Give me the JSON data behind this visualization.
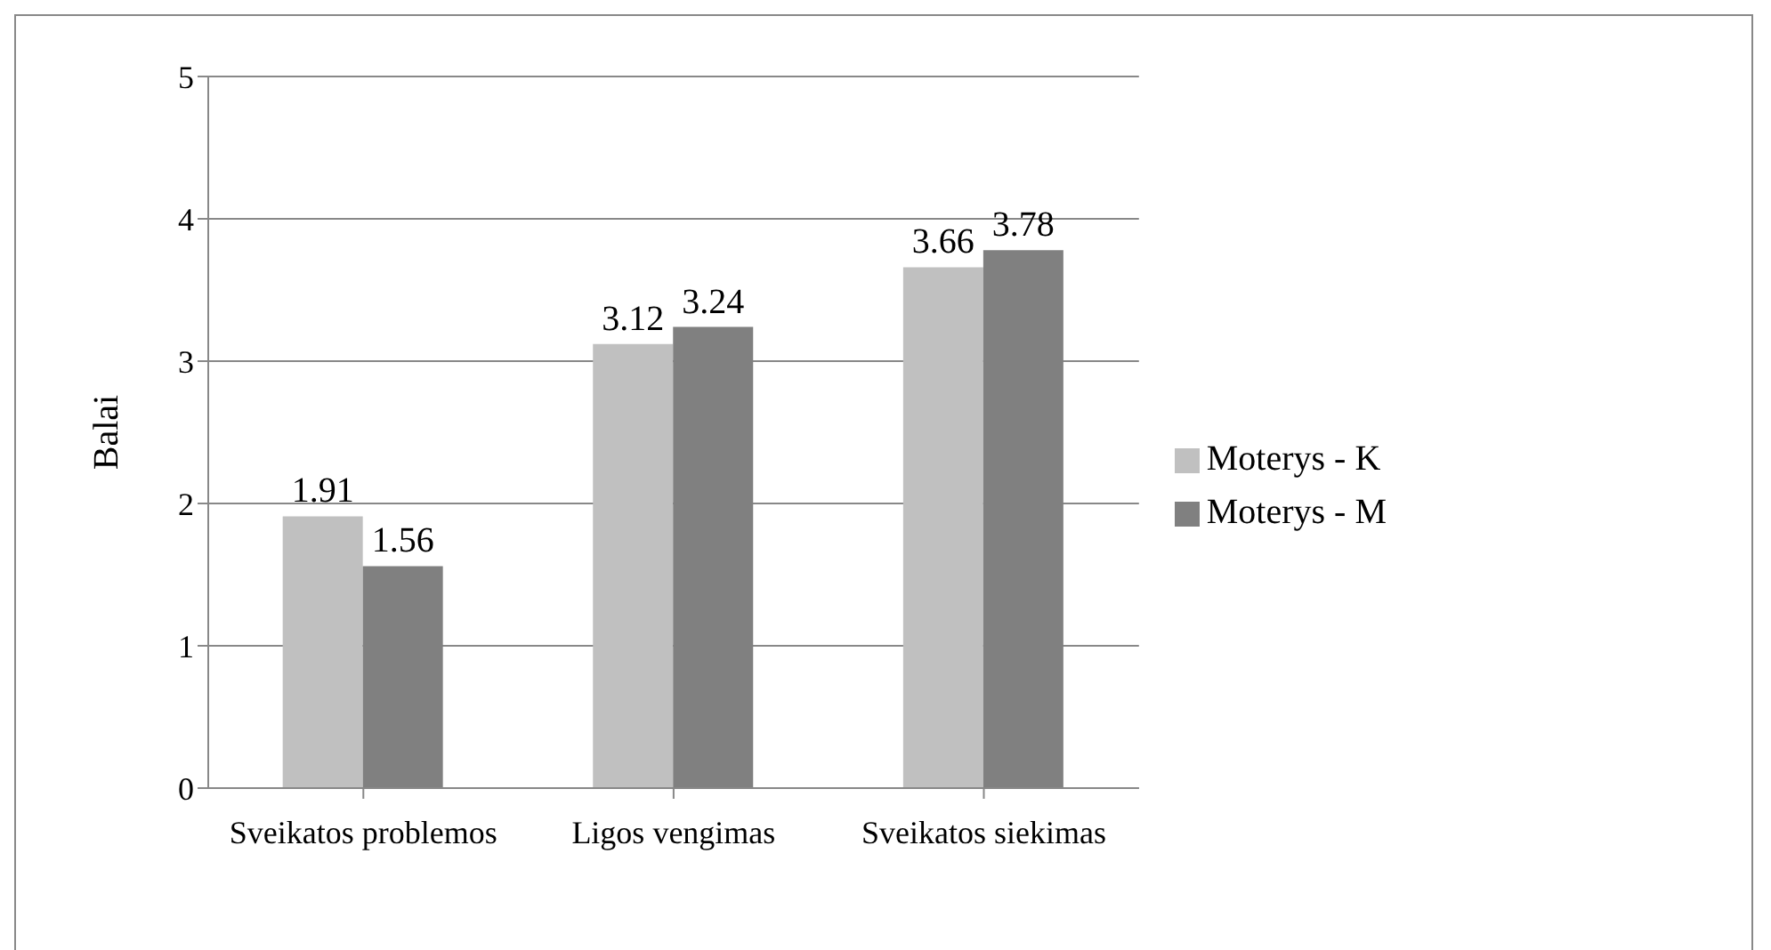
{
  "chart_data": {
    "type": "bar",
    "ylabel": "Balai",
    "categories": [
      "Sveikatos problemos",
      "Ligos vengimas",
      "Sveikatos siekimas"
    ],
    "series": [
      {
        "name": "Moterys - K",
        "color": "#c0c0c0",
        "values": [
          1.91,
          3.12,
          3.66
        ]
      },
      {
        "name": "Moterys - M",
        "color": "#808080",
        "values": [
          1.56,
          3.24,
          3.78
        ]
      }
    ],
    "ylim": [
      0,
      5
    ],
    "yticks": [
      0,
      1,
      2,
      3,
      4,
      5
    ],
    "grid": "y",
    "legend": "right",
    "data_labels": true
  }
}
